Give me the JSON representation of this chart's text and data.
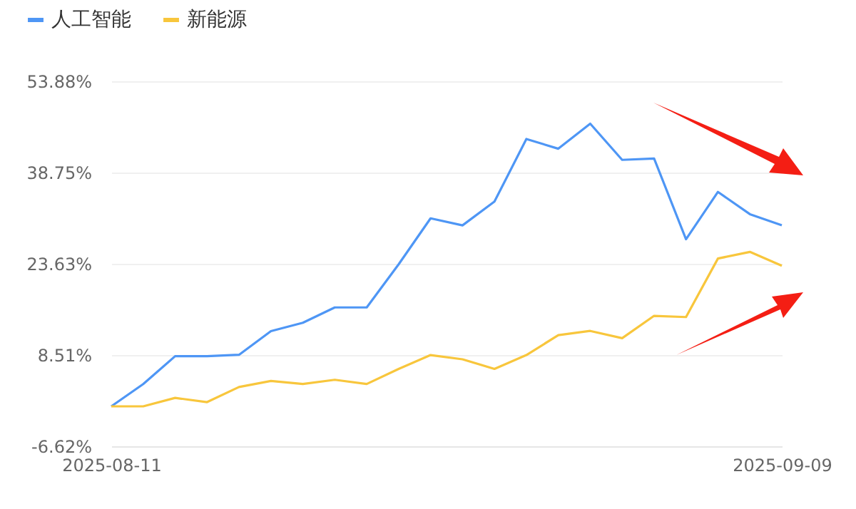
{
  "chart_data": {
    "type": "line",
    "categories": [
      "2025-08-11",
      null,
      null,
      null,
      null,
      null,
      null,
      null,
      null,
      null,
      null,
      null,
      null,
      null,
      null,
      null,
      null,
      null,
      null,
      null,
      null,
      "2025-09-09"
    ],
    "series": [
      {
        "name": "人工智能",
        "color": "#4e96f5",
        "values": [
          0,
          3.69,
          8.31,
          8.31,
          8.54,
          12.46,
          13.85,
          16.39,
          16.39,
          23.54,
          31.16,
          30.0,
          33.93,
          44.31,
          42.7,
          46.85,
          40.85,
          41.08,
          27.7,
          35.54,
          31.85,
          30.0
        ]
      },
      {
        "name": "新能源",
        "color": "#f8c63c",
        "values": [
          0,
          0,
          1.4,
          0.7,
          3.2,
          4.2,
          3.7,
          4.4,
          3.7,
          6.2,
          8.5,
          7.8,
          6.2,
          8.5,
          11.8,
          12.5,
          11.3,
          15.0,
          14.8,
          24.5,
          25.6,
          23.3
        ]
      }
    ],
    "ylim": [
      -6.62,
      53.88
    ],
    "yticks": [
      {
        "value": -6.62,
        "label": "-6.62%"
      },
      {
        "value": 8.51,
        "label": "8.51%"
      },
      {
        "value": 23.63,
        "label": "23.63%"
      },
      {
        "value": 38.75,
        "label": "38.75%"
      },
      {
        "value": 53.88,
        "label": "53.88%"
      }
    ],
    "grid": "y",
    "legend": "top left"
  }
}
